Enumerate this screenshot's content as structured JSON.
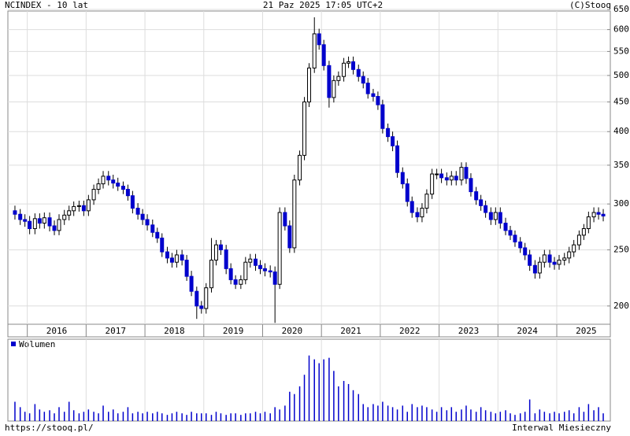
{
  "chart_data": {
    "type": "candlestick",
    "title": "NCINDEX - 10 lat",
    "subtitle": "21 Paz 2025 17:05 UTC+2",
    "source": "(C)Stooq",
    "url": "https://stooq.pl/",
    "interval": "Interwal Miesieczny",
    "log_y": true,
    "grid": true,
    "rise_color": "#ffffff",
    "fall_color": "#0000cc",
    "xlim": [
      2015.67,
      2025.91
    ],
    "xticks": [
      {
        "value": 2016.5,
        "label": "2016"
      },
      {
        "value": 2017.5,
        "label": "2017"
      },
      {
        "value": 2018.5,
        "label": "2018"
      },
      {
        "value": 2019.5,
        "label": "2019"
      },
      {
        "value": 2020.5,
        "label": "2020"
      },
      {
        "value": 2021.5,
        "label": "2021"
      },
      {
        "value": 2022.5,
        "label": "2022"
      },
      {
        "value": 2023.5,
        "label": "2023"
      },
      {
        "value": 2024.5,
        "label": "2024"
      },
      {
        "value": 2025.5,
        "label": "2025"
      }
    ],
    "ylim": [
      186,
      650
    ],
    "yticks": [
      200,
      250,
      300,
      350,
      400,
      450,
      500,
      550,
      600,
      650
    ],
    "x": [
      2015.79,
      2015.88,
      2015.96,
      2016.04,
      2016.13,
      2016.21,
      2016.29,
      2016.38,
      2016.46,
      2016.54,
      2016.63,
      2016.71,
      2016.79,
      2016.88,
      2016.96,
      2017.04,
      2017.13,
      2017.21,
      2017.29,
      2017.38,
      2017.46,
      2017.54,
      2017.63,
      2017.71,
      2017.79,
      2017.88,
      2017.96,
      2018.04,
      2018.13,
      2018.21,
      2018.29,
      2018.38,
      2018.46,
      2018.54,
      2018.63,
      2018.71,
      2018.79,
      2018.88,
      2018.96,
      2019.04,
      2019.13,
      2019.21,
      2019.29,
      2019.38,
      2019.46,
      2019.54,
      2019.63,
      2019.71,
      2019.79,
      2019.88,
      2019.96,
      2020.04,
      2020.13,
      2020.21,
      2020.29,
      2020.38,
      2020.46,
      2020.54,
      2020.63,
      2020.71,
      2020.79,
      2020.88,
      2020.96,
      2021.04,
      2021.13,
      2021.21,
      2021.29,
      2021.38,
      2021.46,
      2021.54,
      2021.63,
      2021.71,
      2021.79,
      2021.88,
      2021.96,
      2022.04,
      2022.13,
      2022.21,
      2022.29,
      2022.38,
      2022.46,
      2022.54,
      2022.63,
      2022.71,
      2022.79,
      2022.88,
      2022.96,
      2023.04,
      2023.13,
      2023.21,
      2023.29,
      2023.38,
      2023.46,
      2023.54,
      2023.63,
      2023.71,
      2023.79,
      2023.88,
      2023.96,
      2024.04,
      2024.13,
      2024.21,
      2024.29,
      2024.38,
      2024.46,
      2024.54,
      2024.63,
      2024.71,
      2024.79,
      2024.88,
      2024.96,
      2025.04,
      2025.13,
      2025.21,
      2025.29,
      2025.38,
      2025.46,
      2025.54,
      2025.63,
      2025.71,
      2025.79
    ],
    "open": [
      292,
      288,
      282,
      280,
      272,
      283,
      278,
      284,
      275,
      270,
      282,
      287,
      292,
      297,
      298,
      292,
      305,
      318,
      325,
      335,
      330,
      326,
      322,
      318,
      310,
      295,
      288,
      282,
      276,
      268,
      262,
      248,
      242,
      238,
      245,
      240,
      225,
      212,
      200,
      198,
      215,
      240,
      255,
      250,
      232,
      222,
      218,
      222,
      238,
      241,
      235,
      232,
      230,
      229,
      218,
      290,
      275,
      252,
      330,
      364,
      450,
      515,
      590,
      565,
      520,
      458,
      490,
      498,
      525,
      528,
      512,
      498,
      485,
      465,
      460,
      445,
      405,
      392,
      378,
      340,
      325,
      303,
      290,
      285,
      295,
      312,
      338,
      338,
      333,
      330,
      335,
      330,
      347,
      332,
      315,
      305,
      298,
      290,
      282,
      290,
      278,
      270,
      265,
      258,
      252,
      245,
      235,
      228,
      238,
      245,
      238,
      236,
      240,
      242,
      248,
      255,
      265,
      272,
      285,
      290,
      288
    ],
    "high": [
      298,
      294,
      288,
      286,
      289,
      289,
      290,
      290,
      281,
      288,
      293,
      298,
      303,
      304,
      304,
      311,
      324,
      332,
      342,
      342,
      337,
      333,
      328,
      324,
      316,
      301,
      294,
      288,
      282,
      273,
      267,
      253,
      247,
      250,
      250,
      245,
      230,
      216,
      204,
      219,
      262,
      260,
      260,
      255,
      237,
      226,
      226,
      243,
      246,
      246,
      240,
      237,
      235,
      234,
      296,
      296,
      281,
      337,
      371,
      459,
      525,
      630,
      602,
      576,
      530,
      500,
      508,
      536,
      539,
      539,
      522,
      508,
      495,
      474,
      469,
      454,
      413,
      400,
      386,
      347,
      332,
      309,
      296,
      301,
      318,
      345,
      345,
      345,
      340,
      342,
      342,
      354,
      354,
      339,
      321,
      311,
      304,
      296,
      296,
      296,
      284,
      275,
      270,
      263,
      257,
      250,
      240,
      243,
      250,
      250,
      243,
      245,
      247,
      253,
      260,
      270,
      277,
      291,
      296,
      296,
      294
    ],
    "low": [
      282,
      276,
      274,
      266,
      266,
      272,
      272,
      269,
      265,
      265,
      276,
      281,
      286,
      291,
      286,
      286,
      299,
      312,
      319,
      323,
      319,
      316,
      312,
      304,
      289,
      282,
      276,
      270,
      263,
      257,
      243,
      237,
      233,
      233,
      235,
      221,
      208,
      190,
      194,
      194,
      211,
      235,
      245,
      227,
      218,
      214,
      214,
      218,
      233,
      230,
      227,
      225,
      224,
      187,
      214,
      270,
      247,
      247,
      323,
      357,
      441,
      505,
      554,
      510,
      440,
      449,
      480,
      488,
      515,
      502,
      488,
      475,
      456,
      451,
      436,
      397,
      384,
      370,
      333,
      319,
      297,
      284,
      279,
      279,
      289,
      306,
      331,
      326,
      323,
      323,
      323,
      323,
      325,
      309,
      299,
      292,
      284,
      276,
      276,
      272,
      265,
      260,
      253,
      247,
      240,
      230,
      223,
      223,
      233,
      233,
      231,
      231,
      235,
      237,
      243,
      250,
      260,
      267,
      279,
      282,
      280
    ],
    "close": [
      288,
      282,
      280,
      272,
      283,
      278,
      284,
      275,
      270,
      282,
      287,
      292,
      297,
      298,
      292,
      305,
      318,
      325,
      335,
      330,
      326,
      322,
      318,
      310,
      295,
      288,
      282,
      276,
      268,
      262,
      248,
      242,
      238,
      245,
      240,
      225,
      212,
      200,
      198,
      215,
      240,
      255,
      250,
      232,
      222,
      218,
      222,
      238,
      241,
      235,
      232,
      230,
      229,
      218,
      290,
      275,
      252,
      330,
      364,
      450,
      515,
      590,
      565,
      520,
      458,
      490,
      498,
      525,
      528,
      512,
      498,
      485,
      465,
      460,
      445,
      405,
      392,
      378,
      340,
      325,
      303,
      290,
      285,
      295,
      312,
      338,
      338,
      333,
      330,
      335,
      330,
      347,
      332,
      315,
      305,
      298,
      290,
      282,
      290,
      278,
      270,
      265,
      258,
      252,
      245,
      235,
      228,
      238,
      245,
      238,
      236,
      240,
      242,
      248,
      255,
      265,
      272,
      285,
      290,
      288,
      286
    ],
    "volume": {
      "name": "Wolumen",
      "color": "#0000cc",
      "ylim": [
        0,
        100
      ],
      "values": [
        25,
        18,
        12,
        10,
        22,
        15,
        12,
        14,
        10,
        18,
        12,
        25,
        14,
        10,
        12,
        15,
        12,
        10,
        20,
        12,
        15,
        10,
        12,
        18,
        10,
        12,
        10,
        12,
        10,
        12,
        10,
        8,
        10,
        12,
        10,
        8,
        12,
        10,
        10,
        10,
        8,
        12,
        10,
        8,
        10,
        10,
        8,
        10,
        10,
        12,
        10,
        12,
        10,
        18,
        15,
        20,
        38,
        35,
        45,
        60,
        85,
        80,
        75,
        80,
        82,
        65,
        45,
        52,
        48,
        40,
        35,
        22,
        18,
        22,
        20,
        25,
        20,
        18,
        15,
        20,
        12,
        22,
        18,
        20,
        18,
        15,
        12,
        18,
        14,
        18,
        12,
        15,
        20,
        15,
        12,
        18,
        14,
        12,
        10,
        12,
        14,
        10,
        8,
        10,
        12,
        28,
        10,
        15,
        12,
        10,
        12,
        10,
        12,
        14,
        10,
        18,
        12,
        22,
        14,
        18,
        10
      ]
    }
  }
}
